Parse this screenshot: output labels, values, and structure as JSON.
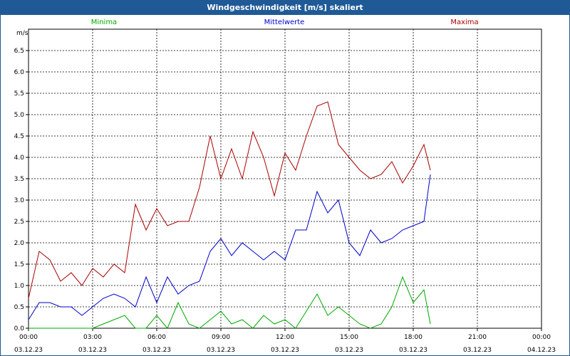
{
  "window": {
    "title": "Windgeschwindigkeit [m/s] skaliert"
  },
  "colors": {
    "minima": "#00aa00",
    "mittel": "#0000cc",
    "maxima": "#aa0000",
    "titlebar": "#1f5a96"
  },
  "chart_data": {
    "type": "line",
    "title": "Windgeschwindigkeit [m/s] skaliert",
    "ylabel": "m/s",
    "ylim": [
      0,
      7
    ],
    "yticks": [
      "0.0",
      "0.5",
      "1.0",
      "1.5",
      "2.0",
      "2.5",
      "3.0",
      "3.5",
      "4.0",
      "4.5",
      "5.0",
      "5.5",
      "6.0",
      "6.5"
    ],
    "xlim_hours": [
      0,
      24
    ],
    "xticks": [
      {
        "time": "00:00",
        "date": "03.12.23"
      },
      {
        "time": "03:00",
        "date": "03.12.23"
      },
      {
        "time": "06:00",
        "date": "03.12.23"
      },
      {
        "time": "09:00",
        "date": "03.12.23"
      },
      {
        "time": "12:00",
        "date": "03.12.23"
      },
      {
        "time": "15:00",
        "date": "03.12.23"
      },
      {
        "time": "18:00",
        "date": "03.12.23"
      },
      {
        "time": "21:00",
        "date": "03.12.23"
      },
      {
        "time": "00:00",
        "date": "04.12.23"
      }
    ],
    "grid": true,
    "legend_position": "top",
    "x_hours": [
      0,
      0.5,
      1,
      1.5,
      2,
      2.5,
      3,
      3.5,
      4,
      4.5,
      5,
      5.5,
      6,
      6.5,
      7,
      7.5,
      8,
      8.5,
      9,
      9.5,
      10,
      10.5,
      11,
      11.5,
      12,
      12.5,
      13,
      13.5,
      14,
      14.5,
      15,
      15.5,
      16,
      16.5,
      17,
      17.5,
      18,
      18.5,
      18.8
    ],
    "series": [
      {
        "name": "Minima",
        "values": [
          0.0,
          0.0,
          0.0,
          0.0,
          0.0,
          0.0,
          0.0,
          0.1,
          0.2,
          0.3,
          0.0,
          0.0,
          0.3,
          0.0,
          0.6,
          0.1,
          0.0,
          0.2,
          0.4,
          0.1,
          0.2,
          0.0,
          0.3,
          0.1,
          0.2,
          0.0,
          0.4,
          0.8,
          0.3,
          0.5,
          0.3,
          0.1,
          0.0,
          0.1,
          0.5,
          1.2,
          0.6,
          0.9,
          0.1
        ]
      },
      {
        "name": "Mittelwerte",
        "values": [
          0.2,
          0.6,
          0.6,
          0.5,
          0.5,
          0.3,
          0.5,
          0.7,
          0.8,
          0.7,
          0.5,
          1.2,
          0.6,
          1.2,
          0.8,
          1.0,
          1.1,
          1.8,
          2.1,
          1.7,
          2.0,
          1.8,
          1.6,
          1.8,
          1.6,
          2.3,
          2.3,
          3.2,
          2.7,
          3.0,
          2.0,
          1.7,
          2.3,
          2.0,
          2.1,
          2.3,
          2.4,
          2.5,
          3.6
        ]
      },
      {
        "name": "Maxima",
        "values": [
          0.7,
          1.8,
          1.6,
          1.1,
          1.3,
          1.0,
          1.4,
          1.2,
          1.5,
          1.3,
          2.9,
          2.3,
          2.8,
          2.4,
          2.5,
          2.5,
          3.3,
          4.5,
          3.5,
          4.2,
          3.5,
          4.6,
          4.0,
          3.1,
          4.1,
          3.7,
          4.5,
          5.2,
          5.3,
          4.3,
          4.0,
          3.7,
          3.5,
          3.6,
          3.9,
          3.4,
          3.8,
          4.3,
          3.7
        ]
      }
    ]
  }
}
